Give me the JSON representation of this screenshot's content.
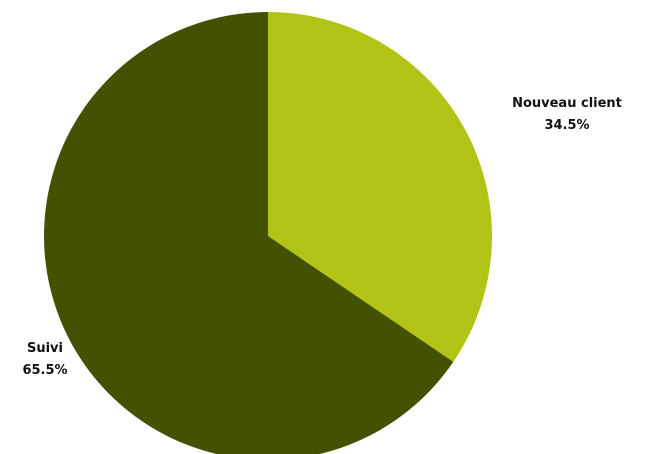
{
  "chart_data": {
    "type": "pie",
    "title": "",
    "start_angle_deg": 0,
    "direction": "clockwise",
    "slices": [
      {
        "label": "Nouveau client",
        "value": 34.5,
        "value_label": "34.5%",
        "color": "#b2c318"
      },
      {
        "label": "Suivi",
        "value": 65.5,
        "value_label": "65.5%",
        "color": "#435102"
      }
    ]
  }
}
